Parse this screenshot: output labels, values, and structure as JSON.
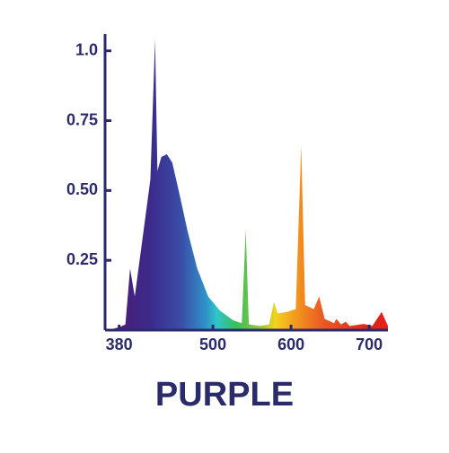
{
  "chart_data": {
    "type": "area",
    "title": "PURPLE",
    "x": [
      365,
      380,
      388,
      394,
      400,
      411,
      420,
      426,
      429,
      434,
      441,
      448,
      457,
      468,
      480,
      494,
      509,
      526,
      537,
      542,
      546,
      560,
      572,
      578,
      583,
      595,
      606,
      613,
      618,
      629,
      636,
      643,
      655,
      658,
      664,
      670,
      675,
      693,
      704,
      716,
      724
    ],
    "values": [
      0,
      0.01,
      0.02,
      0.22,
      0.12,
      0.35,
      0.54,
      1.04,
      0.57,
      0.62,
      0.63,
      0.6,
      0.49,
      0.35,
      0.22,
      0.12,
      0.07,
      0.035,
      0.025,
      0.36,
      0.02,
      0.015,
      0.02,
      0.1,
      0.06,
      0.065,
      0.075,
      0.66,
      0.09,
      0.075,
      0.12,
      0.04,
      0.025,
      0.04,
      0.02,
      0.03,
      0.015,
      0.022,
      0.015,
      0.065,
      0.015
    ],
    "color_stops": [
      {
        "at": 380,
        "color": "#4a1e78"
      },
      {
        "at": 420,
        "color": "#3b2a8c"
      },
      {
        "at": 460,
        "color": "#3a4fa8"
      },
      {
        "at": 490,
        "color": "#2f8fc8"
      },
      {
        "at": 505,
        "color": "#2fc4c8"
      },
      {
        "at": 530,
        "color": "#3bbf5a"
      },
      {
        "at": 560,
        "color": "#8fc63a"
      },
      {
        "at": 580,
        "color": "#f2d21e"
      },
      {
        "at": 605,
        "color": "#f39a1e"
      },
      {
        "at": 640,
        "color": "#ea5a22"
      },
      {
        "at": 700,
        "color": "#e2231a"
      }
    ],
    "xlim": [
      362,
      724
    ],
    "ylim": [
      0,
      1.06
    ],
    "xticks": [
      380,
      500,
      600,
      700
    ],
    "yticks": [
      {
        "value": 0.25,
        "label": "0.25"
      },
      {
        "value": 0.5,
        "label": "0.50"
      },
      0.75,
      {
        "value": 1,
        "label": "1.0"
      }
    ],
    "axis_color": "#2b2b6b"
  }
}
